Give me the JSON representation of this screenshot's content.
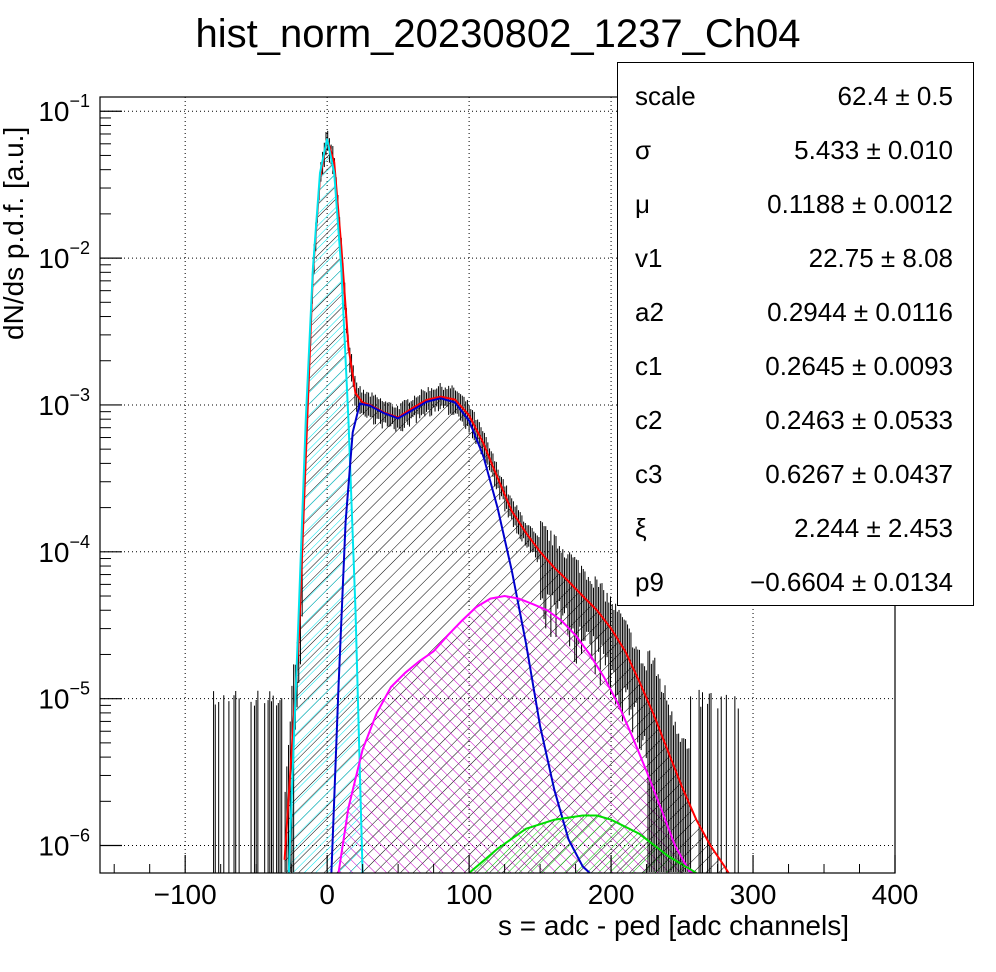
{
  "chart_data": {
    "type": "line",
    "title": "hist_norm_20230802_1237_Ch04",
    "xlabel": "s = adc - ped [adc channels]",
    "ylabel": "dN/ds p.d.f. [a.u.]",
    "xlim": [
      -160,
      400
    ],
    "ylim": [
      6.5e-07,
      0.125
    ],
    "yscale": "log",
    "grid": true,
    "x_ticks": [
      "−100",
      "0",
      "100",
      "200",
      "300",
      "400"
    ],
    "x_tick_values": [
      -100,
      0,
      100,
      200,
      300,
      400
    ],
    "y_ticks": [
      {
        "base": "10",
        "exp": "−1",
        "value": 0.1
      },
      {
        "base": "10",
        "exp": "−2",
        "value": 0.01
      },
      {
        "base": "10",
        "exp": "−3",
        "value": 0.001
      },
      {
        "base": "10",
        "exp": "−4",
        "value": 0.0001
      },
      {
        "base": "10",
        "exp": "−5",
        "value": 1e-05
      },
      {
        "base": "10",
        "exp": "−6",
        "value": 1e-06
      }
    ],
    "series": [
      {
        "color": "#ff0000",
        "x": [
          -30,
          -20,
          -10,
          -5,
          0,
          5,
          10,
          15,
          20,
          25,
          30,
          40,
          50,
          60,
          70,
          80,
          90,
          100,
          110,
          120,
          130,
          140,
          150,
          160,
          170,
          180,
          190,
          200,
          210,
          220,
          230,
          240,
          250,
          260,
          270,
          280,
          290
        ],
        "y": [
          8e-07,
          2.5e-05,
          0.008,
          0.035,
          0.065,
          0.045,
          0.012,
          0.0025,
          0.0012,
          0.00104,
          0.001,
          0.00089,
          0.00082,
          0.00095,
          0.00108,
          0.00114,
          0.00109,
          0.00085,
          0.00055,
          0.00032,
          0.00019,
          0.000135,
          0.0001,
          7.8e-05,
          6.3e-05,
          5e-05,
          4e-05,
          3e-05,
          2.1e-05,
          1.3e-05,
          7.8e-06,
          4.4e-06,
          2.5e-06,
          1.5e-06,
          1e-06,
          7.2e-07,
          5e-07
        ]
      },
      {
        "color": "#00e5ee",
        "x": [
          -27,
          -20,
          -15,
          -10,
          -5,
          0,
          5,
          10,
          15,
          20,
          25
        ],
        "y": [
          6.5e-07,
          4e-05,
          0.0008,
          0.0085,
          0.038,
          0.065,
          0.038,
          0.0085,
          0.0008,
          4e-05,
          6.5e-07
        ]
      },
      {
        "color": "#0000cc",
        "x": [
          3,
          8,
          13,
          18,
          23,
          30,
          40,
          50,
          60,
          70,
          80,
          90,
          100,
          110,
          120,
          130,
          140,
          150,
          160,
          170,
          180,
          185
        ],
        "y": [
          6.5e-07,
          1.2e-05,
          0.00016,
          0.00065,
          0.00102,
          0.00099,
          0.00088,
          0.00081,
          0.00092,
          0.00105,
          0.00111,
          0.00104,
          0.00078,
          0.00045,
          0.0002,
          7.5e-05,
          2.4e-05,
          6.5e-06,
          2.4e-06,
          1.1e-06,
          7.2e-07,
          6.5e-07
        ]
      },
      {
        "color": "#ff00ff",
        "x": [
          8,
          15,
          25,
          35,
          45,
          55,
          65,
          75,
          85,
          95,
          105,
          115,
          125,
          135,
          145,
          155,
          165,
          175,
          185,
          195,
          205,
          215,
          225,
          235,
          245,
          255,
          260
        ],
        "y": [
          6.5e-07,
          1.8e-06,
          4.5e-06,
          8e-06,
          1.2e-05,
          1.5e-05,
          1.8e-05,
          2.1e-05,
          2.7e-05,
          3.4e-05,
          4.2e-05,
          4.8e-05,
          5e-05,
          4.8e-05,
          4.4e-05,
          4e-05,
          3.4e-05,
          2.7e-05,
          2e-05,
          1.4e-05,
          9.2e-06,
          5.5e-06,
          3.2e-06,
          1.8e-06,
          1e-06,
          6.7e-07,
          6.5e-07
        ]
      },
      {
        "color": "#00dd00",
        "x": [
          100,
          120,
          140,
          160,
          180,
          190,
          200,
          220,
          240,
          260
        ],
        "y": [
          6.5e-07,
          9.5e-07,
          1.3e-06,
          1.5e-06,
          1.6e-06,
          1.6e-06,
          1.5e-06,
          1.2e-06,
          8.5e-07,
          6.5e-07
        ]
      }
    ]
  },
  "stats": [
    {
      "name": "scale",
      "value": "62.4 ± 0.5"
    },
    {
      "name": "σ",
      "value": "5.433 ± 0.010"
    },
    {
      "name": "μ",
      "value": "0.1188 ± 0.0012"
    },
    {
      "name": "v1",
      "value": "22.75 ± 8.08"
    },
    {
      "name": "a2",
      "value": "0.2944 ± 0.0116"
    },
    {
      "name": "c1",
      "value": "0.2645 ± 0.0093"
    },
    {
      "name": "c2",
      "value": "0.2463 ± 0.0533"
    },
    {
      "name": "c3",
      "value": "0.6267 ± 0.0437"
    },
    {
      "name": "ξ",
      "value": "2.244 ± 2.453"
    },
    {
      "name": "p9",
      "value": "−0.6604 ± 0.0134"
    }
  ]
}
